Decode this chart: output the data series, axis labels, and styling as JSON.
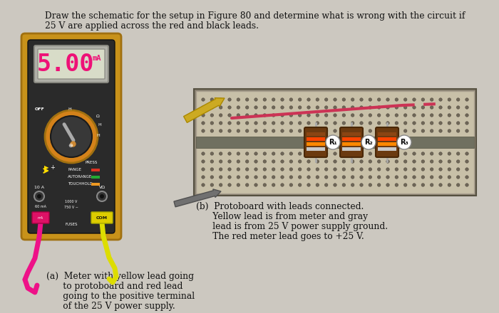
{
  "title_line1": "Draw the schematic for the setup in Figure 80 and determine what is wrong with the circuit if",
  "title_line2": "25 V are applied across the red and black leads.",
  "caption_a_line1": "(a)  Meter with yellow lead going",
  "caption_a_line2": "      to protoboard and red lead",
  "caption_a_line3": "      going to the positive terminal",
  "caption_a_line4": "      of the 25 V power supply.",
  "caption_b_line1": "(b)  Protoboard with leads connected.",
  "caption_b_line2": "      Yellow lead is from meter and gray",
  "caption_b_line3": "      lead is from 25 V power supply ground.",
  "caption_b_line4": "      The red meter lead goes to +25 V.",
  "display_value": "5.00",
  "display_unit": "mA",
  "bg_color": "#ccc8c0",
  "meter_border_color": "#c8921a",
  "meter_body_color": "#2a2a2a",
  "display_bg": "#d8dcc8",
  "display_text_color": "#ee1177",
  "knob_ring_color": "#d4821a",
  "pb_bg": "#2a2520",
  "pb_dot_color": "#4a4540",
  "pb_rail_color": "#888070"
}
